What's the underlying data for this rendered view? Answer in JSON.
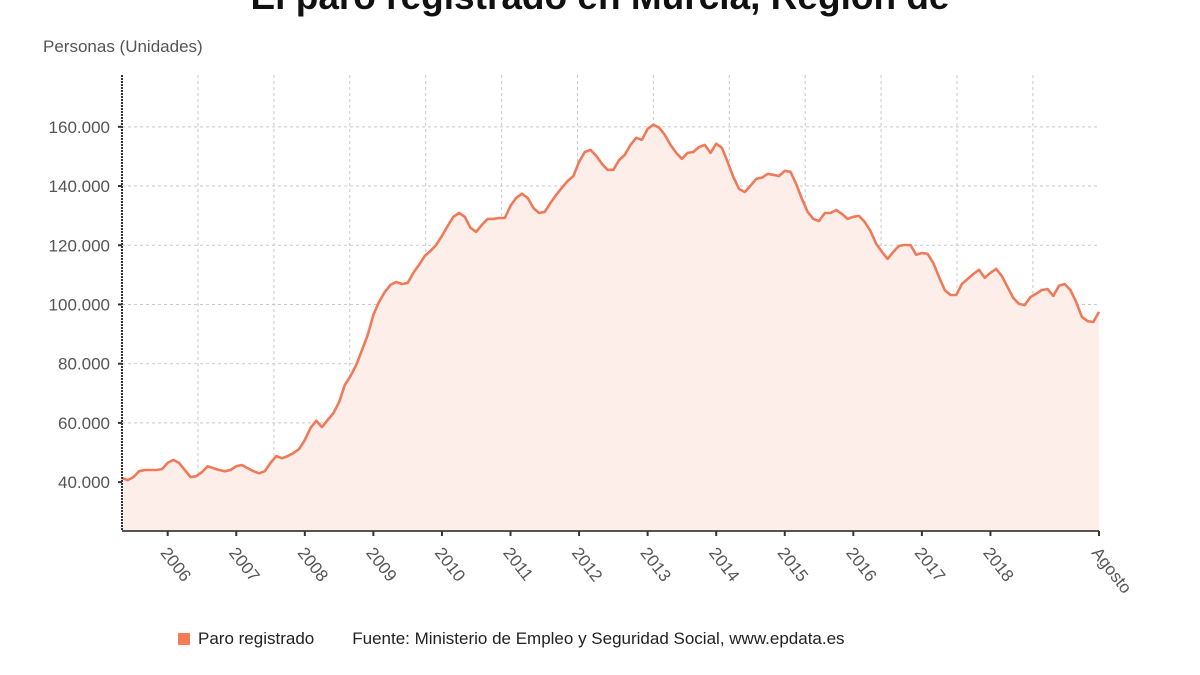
{
  "chart_data": {
    "type": "area",
    "title": "El paro registrado en Murcia, Región de",
    "ylabel": "Personas (Unidades)",
    "xlabel": "",
    "x_start": "2005-05",
    "x_end": "2019-08",
    "frequency": "monthly",
    "ylim": [
      23500,
      177500
    ],
    "yticks": [
      40000,
      60000,
      80000,
      100000,
      120000,
      140000,
      160000
    ],
    "ytick_labels": [
      "40.000",
      "60.000",
      "80.000",
      "100.000",
      "120.000",
      "140.000",
      "160.000"
    ],
    "xticks": [
      {
        "label": "2006",
        "date": "2006-01"
      },
      {
        "label": "2007",
        "date": "2007-01"
      },
      {
        "label": "2008",
        "date": "2008-01"
      },
      {
        "label": "2009",
        "date": "2009-01"
      },
      {
        "label": "2010",
        "date": "2010-01"
      },
      {
        "label": "2011",
        "date": "2011-01"
      },
      {
        "label": "2012",
        "date": "2012-01"
      },
      {
        "label": "2013",
        "date": "2013-01"
      },
      {
        "label": "2014",
        "date": "2014-01"
      },
      {
        "label": "2015",
        "date": "2015-01"
      },
      {
        "label": "2016",
        "date": "2016-01"
      },
      {
        "label": "2017",
        "date": "2017-01"
      },
      {
        "label": "2018",
        "date": "2018-01"
      },
      {
        "label": "Agosto",
        "date": "2019-08"
      }
    ],
    "grid": true,
    "legend_position": "bottom",
    "series": [
      {
        "name": "Paro registrado",
        "color": "#ef7a5a",
        "fill": "#fdeeea",
        "values": [
          41400,
          40700,
          41700,
          43700,
          44100,
          44100,
          44100,
          44400,
          46500,
          47500,
          46500,
          44100,
          41700,
          42000,
          43400,
          45400,
          44700,
          44100,
          43700,
          44100,
          45400,
          45800,
          44700,
          43700,
          43000,
          43700,
          46500,
          48800,
          48100,
          48800,
          49800,
          51200,
          54200,
          58300,
          60700,
          58600,
          61000,
          63300,
          67000,
          72800,
          75800,
          79600,
          84600,
          89700,
          96500,
          100900,
          104200,
          106600,
          107600,
          106900,
          107300,
          110700,
          113400,
          116400,
          118100,
          120100,
          123200,
          126500,
          129600,
          130900,
          129600,
          125900,
          124500,
          126900,
          128900,
          128900,
          129200,
          129200,
          133300,
          136000,
          137400,
          136000,
          132600,
          130900,
          131300,
          134300,
          137000,
          139400,
          141700,
          143400,
          148200,
          151500,
          152200,
          150200,
          147500,
          145500,
          145500,
          148800,
          150500,
          153900,
          156300,
          155600,
          159300,
          160700,
          159700,
          157300,
          153900,
          151200,
          149200,
          151200,
          151500,
          153200,
          153900,
          151200,
          154300,
          152900,
          148200,
          143100,
          139000,
          138000,
          140100,
          142400,
          142800,
          144100,
          143800,
          143400,
          145100,
          144800,
          140700,
          135700,
          131300,
          128900,
          128200,
          130900,
          130900,
          131900,
          130600,
          128900,
          129600,
          129900,
          127900,
          124800,
          120500,
          117800,
          115400,
          117800,
          119800,
          120100,
          120100,
          116800,
          117400,
          117100,
          114000,
          109300,
          104900,
          103200,
          103200,
          106900,
          108600,
          110300,
          111700,
          109000,
          110700,
          112000,
          109600,
          105900,
          102200,
          100200,
          99800,
          102500,
          103600,
          104900,
          105200,
          102900,
          106300,
          106900,
          104900,
          100900,
          95800,
          94400,
          94100,
          97500
        ]
      }
    ]
  },
  "legend": {
    "label": "Paro registrado",
    "color": "#f47b54"
  },
  "source": "Fuente: Ministerio de Empleo y Seguridad Social, www.epdata.es"
}
